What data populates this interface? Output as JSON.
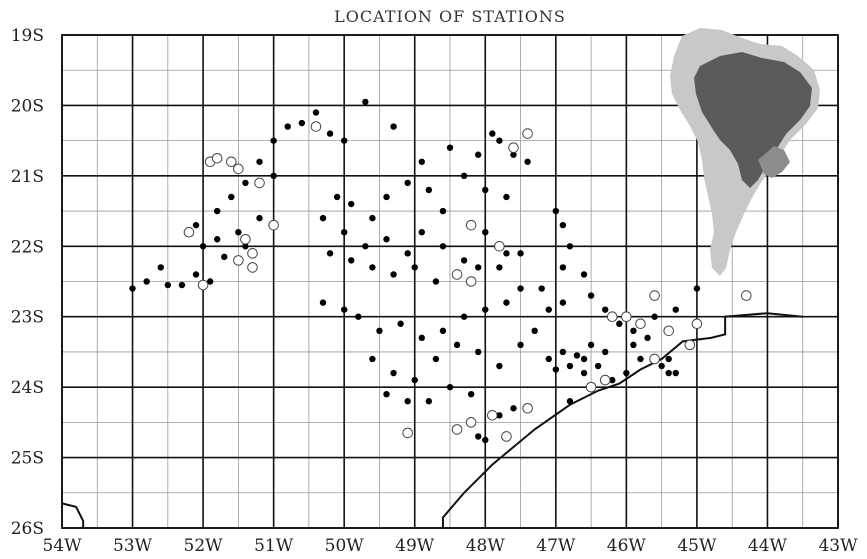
{
  "chart_data": {
    "type": "scatter",
    "title": "LOCATION OF STATIONS",
    "xlim": [
      -54,
      -43
    ],
    "ylim": [
      -26,
      -19
    ],
    "x_ticks": [
      {
        "value": -54,
        "label": "54W"
      },
      {
        "value": -53,
        "label": "53W"
      },
      {
        "value": -52,
        "label": "52W"
      },
      {
        "value": -51,
        "label": "51W"
      },
      {
        "value": -50,
        "label": "50W"
      },
      {
        "value": -49,
        "label": "49W"
      },
      {
        "value": -48,
        "label": "48W"
      },
      {
        "value": -47,
        "label": "47W"
      },
      {
        "value": -46,
        "label": "46W"
      },
      {
        "value": -45,
        "label": "45W"
      },
      {
        "value": -44,
        "label": "44W"
      },
      {
        "value": -43,
        "label": "43W"
      }
    ],
    "y_ticks": [
      {
        "value": -19,
        "label": "19S"
      },
      {
        "value": -20,
        "label": "20S"
      },
      {
        "value": -21,
        "label": "21S"
      },
      {
        "value": -22,
        "label": "22S"
      },
      {
        "value": -23,
        "label": "23S"
      },
      {
        "value": -24,
        "label": "24S"
      },
      {
        "value": -25,
        "label": "25S"
      },
      {
        "value": -26,
        "label": "26S"
      }
    ],
    "grid": true,
    "minor_grid_step": 0.5,
    "coastline": [
      [
        -48.6,
        -26.0
      ],
      [
        -48.6,
        -25.85
      ],
      [
        -48.3,
        -25.5
      ],
      [
        -47.9,
        -25.1
      ],
      [
        -47.3,
        -24.6
      ],
      [
        -46.8,
        -24.25
      ],
      [
        -46.4,
        -24.05
      ],
      [
        -46.1,
        -23.95
      ],
      [
        -45.8,
        -23.75
      ],
      [
        -45.5,
        -23.6
      ],
      [
        -45.2,
        -23.35
      ],
      [
        -44.8,
        -23.3
      ],
      [
        -44.6,
        -23.25
      ],
      [
        -44.6,
        -23.0
      ],
      [
        -44.0,
        -22.95
      ],
      [
        -43.5,
        -23.0
      ]
    ],
    "coastline_corner": [
      [
        -54.0,
        -25.65
      ],
      [
        -53.8,
        -25.7
      ],
      [
        -53.7,
        -25.9
      ],
      [
        -53.7,
        -26.0
      ]
    ],
    "series": [
      {
        "marker": "dot",
        "points": [
          [
            -53.0,
            -22.6
          ],
          [
            -52.8,
            -22.5
          ],
          [
            -52.6,
            -22.3
          ],
          [
            -52.5,
            -22.55
          ],
          [
            -52.3,
            -22.55
          ],
          [
            -52.1,
            -22.4
          ],
          [
            -51.9,
            -22.5
          ],
          [
            -52.0,
            -22.0
          ],
          [
            -51.8,
            -21.9
          ],
          [
            -51.7,
            -22.15
          ],
          [
            -51.6,
            -21.3
          ],
          [
            -51.5,
            -21.8
          ],
          [
            -51.4,
            -22.0
          ],
          [
            -51.2,
            -21.6
          ],
          [
            -51.0,
            -21.0
          ],
          [
            -51.2,
            -20.8
          ],
          [
            -51.0,
            -20.5
          ],
          [
            -50.8,
            -20.3
          ],
          [
            -50.6,
            -20.25
          ],
          [
            -50.4,
            -20.1
          ],
          [
            -50.2,
            -20.4
          ],
          [
            -50.0,
            -20.5
          ],
          [
            -49.7,
            -19.95
          ],
          [
            -49.3,
            -20.3
          ],
          [
            -48.9,
            -20.8
          ],
          [
            -48.5,
            -20.6
          ],
          [
            -48.1,
            -20.7
          ],
          [
            -47.9,
            -20.4
          ],
          [
            -47.6,
            -20.7
          ],
          [
            -47.4,
            -20.8
          ],
          [
            -50.1,
            -21.3
          ],
          [
            -49.9,
            -21.4
          ],
          [
            -49.6,
            -21.6
          ],
          [
            -49.4,
            -21.3
          ],
          [
            -49.1,
            -21.1
          ],
          [
            -48.8,
            -21.2
          ],
          [
            -48.6,
            -21.5
          ],
          [
            -48.3,
            -21.0
          ],
          [
            -48.0,
            -21.2
          ],
          [
            -47.7,
            -21.3
          ],
          [
            -50.3,
            -21.6
          ],
          [
            -50.0,
            -21.8
          ],
          [
            -49.7,
            -22.0
          ],
          [
            -49.4,
            -21.9
          ],
          [
            -49.1,
            -22.1
          ],
          [
            -48.9,
            -21.8
          ],
          [
            -48.6,
            -22.0
          ],
          [
            -48.3,
            -22.2
          ],
          [
            -48.0,
            -21.8
          ],
          [
            -47.7,
            -22.1
          ],
          [
            -50.2,
            -22.1
          ],
          [
            -49.9,
            -22.2
          ],
          [
            -49.6,
            -22.3
          ],
          [
            -49.3,
            -22.4
          ],
          [
            -49.0,
            -22.3
          ],
          [
            -48.7,
            -22.5
          ],
          [
            -48.4,
            -22.4
          ],
          [
            -48.1,
            -22.3
          ],
          [
            -47.8,
            -22.3
          ],
          [
            -47.5,
            -22.1
          ],
          [
            -50.3,
            -22.8
          ],
          [
            -50.0,
            -22.9
          ],
          [
            -49.8,
            -23.0
          ],
          [
            -49.5,
            -23.2
          ],
          [
            -49.2,
            -23.1
          ],
          [
            -48.9,
            -23.3
          ],
          [
            -48.6,
            -23.2
          ],
          [
            -48.3,
            -23.0
          ],
          [
            -48.0,
            -22.9
          ],
          [
            -47.7,
            -22.8
          ],
          [
            -49.6,
            -23.6
          ],
          [
            -49.3,
            -23.8
          ],
          [
            -49.0,
            -23.9
          ],
          [
            -48.7,
            -23.6
          ],
          [
            -48.4,
            -23.4
          ],
          [
            -48.1,
            -23.5
          ],
          [
            -47.8,
            -23.7
          ],
          [
            -47.5,
            -23.4
          ],
          [
            -47.3,
            -23.2
          ],
          [
            -47.1,
            -22.9
          ],
          [
            -49.4,
            -24.1
          ],
          [
            -49.1,
            -24.2
          ],
          [
            -48.8,
            -24.2
          ],
          [
            -48.5,
            -24.0
          ],
          [
            -48.2,
            -24.1
          ],
          [
            -47.0,
            -21.5
          ],
          [
            -46.9,
            -21.7
          ],
          [
            -46.8,
            -22.0
          ],
          [
            -46.9,
            -22.3
          ],
          [
            -46.6,
            -22.4
          ],
          [
            -46.5,
            -22.7
          ],
          [
            -46.3,
            -22.9
          ],
          [
            -46.1,
            -23.1
          ],
          [
            -45.9,
            -23.2
          ],
          [
            -45.6,
            -23.0
          ],
          [
            -45.3,
            -22.9
          ],
          [
            -45.0,
            -22.6
          ],
          [
            -47.5,
            -22.6
          ],
          [
            -47.2,
            -22.6
          ],
          [
            -46.9,
            -22.8
          ],
          [
            -48.1,
            -24.7
          ],
          [
            -48.0,
            -24.75
          ],
          [
            -47.8,
            -24.4
          ],
          [
            -47.6,
            -24.3
          ],
          [
            -47.1,
            -23.6
          ],
          [
            -47.0,
            -23.75
          ],
          [
            -46.9,
            -23.5
          ],
          [
            -46.8,
            -23.7
          ],
          [
            -46.7,
            -23.55
          ],
          [
            -46.6,
            -23.8
          ],
          [
            -46.6,
            -23.6
          ],
          [
            -46.5,
            -23.4
          ],
          [
            -46.4,
            -23.7
          ],
          [
            -46.3,
            -23.5
          ],
          [
            -46.2,
            -23.9
          ],
          [
            -46.0,
            -23.8
          ],
          [
            -45.9,
            -23.4
          ],
          [
            -45.8,
            -23.6
          ],
          [
            -45.7,
            -23.3
          ],
          [
            -45.5,
            -23.7
          ],
          [
            -45.4,
            -23.6
          ],
          [
            -45.4,
            -23.8
          ],
          [
            -45.3,
            -23.8
          ],
          [
            -46.8,
            -24.2
          ],
          [
            -46.5,
            -24.0
          ],
          [
            -51.4,
            -21.1
          ],
          [
            -51.8,
            -21.5
          ],
          [
            -52.1,
            -21.7
          ],
          [
            -50.4,
            -20.3
          ],
          [
            -47.8,
            -20.5
          ]
        ]
      },
      {
        "marker": "circle",
        "points": [
          [
            -52.2,
            -21.8
          ],
          [
            -52.0,
            -22.55
          ],
          [
            -51.9,
            -20.8
          ],
          [
            -51.8,
            -20.75
          ],
          [
            -51.6,
            -20.8
          ],
          [
            -51.5,
            -20.9
          ],
          [
            -51.2,
            -21.1
          ],
          [
            -51.0,
            -21.7
          ],
          [
            -51.4,
            -21.9
          ],
          [
            -51.3,
            -22.1
          ],
          [
            -51.5,
            -22.2
          ],
          [
            -51.3,
            -22.3
          ],
          [
            -50.4,
            -20.3
          ],
          [
            -47.6,
            -20.6
          ],
          [
            -47.4,
            -20.4
          ],
          [
            -48.2,
            -21.7
          ],
          [
            -48.4,
            -22.4
          ],
          [
            -48.2,
            -22.5
          ],
          [
            -47.8,
            -22.0
          ],
          [
            -49.1,
            -24.65
          ],
          [
            -48.4,
            -24.6
          ],
          [
            -48.2,
            -24.5
          ],
          [
            -47.9,
            -24.4
          ],
          [
            -47.7,
            -24.7
          ],
          [
            -47.4,
            -24.3
          ],
          [
            -46.5,
            -24.0
          ],
          [
            -46.3,
            -23.9
          ],
          [
            -46.2,
            -23.0
          ],
          [
            -46.0,
            -23.0
          ],
          [
            -45.8,
            -23.1
          ],
          [
            -45.6,
            -22.7
          ],
          [
            -45.4,
            -23.2
          ],
          [
            -45.1,
            -23.4
          ],
          [
            -45.0,
            -23.1
          ],
          [
            -44.3,
            -22.7
          ],
          [
            -45.6,
            -23.6
          ]
        ]
      }
    ]
  },
  "inset": {
    "colors": {
      "continent": "#c8c8c8",
      "brazil": "#5a5a5a",
      "region": "#8c8c8c"
    }
  }
}
